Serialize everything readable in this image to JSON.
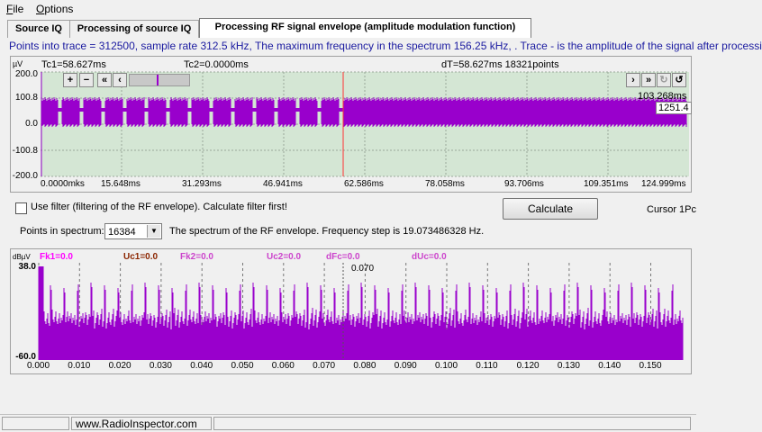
{
  "menu": {
    "file": "File",
    "options": "Options"
  },
  "tabs": [
    {
      "label": "Source IQ"
    },
    {
      "label": "Processing of source IQ"
    },
    {
      "label": "Processing RF signal envelope (amplitude modulation function)"
    }
  ],
  "info": "Points into trace = 312500, sample rate 312.5 kHz, The maximum frequency in the spectrum 156.25 kHz, . Trace - is the amplitude of the signal after processi",
  "trace": {
    "unit": "µV",
    "tc1": "Tc1=58.627ms",
    "tc2": "Tc2=0.0000ms",
    "dt": "dT=58.627ms 18321points",
    "y_labels": [
      "200.0",
      "100.8",
      "0.0",
      "-100.8",
      "-200.0"
    ],
    "x_labels": [
      "0.0000mks",
      "15.648ms",
      "31.293ms",
      "46.941ms",
      "62.586ms",
      "78.058ms",
      "93.706ms",
      "109.351ms",
      "124.999ms"
    ],
    "readout_top": "103.268ms",
    "readout_val": "1251.4",
    "colors": {
      "signal": "#9900cc",
      "cursor1": "#ff3333",
      "cursor2": "#9900cc",
      "bg": "#d4e6d4"
    }
  },
  "filter": {
    "checkbox_label": "Use filter (filtering of the RF envelope). Calculate filter first!",
    "checked": false,
    "calculate": "Calculate",
    "cursor_text": "Cursor 1Pc"
  },
  "spectrum_ctl": {
    "points_label": "Points in spectrum:",
    "points_value": "16384",
    "description": "The spectrum of the RF envelope. Frequency step is 19.073486328 Hz."
  },
  "spectrum": {
    "unit": "dBµV",
    "fk1": "Fk1=0.0",
    "uc1": "Uc1=0.0",
    "fk2": "Fk2=0.0",
    "uc2": "Uc2=0.0",
    "dfc": "dFc=0.0",
    "duc": "dUc=0.0",
    "cursor_label": "0.070",
    "y_top": "38.0",
    "y_bottom": "-60.0",
    "x_labels": [
      "0.000",
      "0.010",
      "0.020",
      "0.030",
      "0.040",
      "0.050",
      "0.060",
      "0.070",
      "0.080",
      "0.090",
      "0.100",
      "0.110",
      "0.120",
      "0.130",
      "0.140",
      "0.150"
    ]
  },
  "status": {
    "url": "www.RadioInspector.com"
  }
}
